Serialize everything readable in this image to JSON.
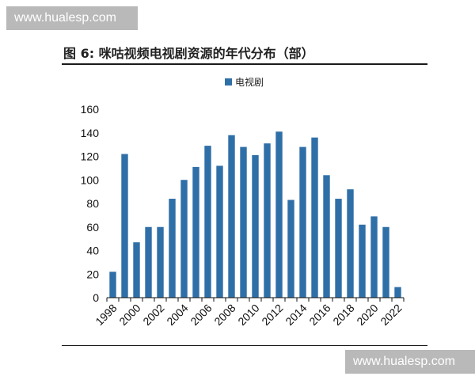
{
  "watermarks": {
    "top": "www.hualesp.com",
    "bottom": "www.hualesp.com"
  },
  "figure_title": "图 6: 咪咕视频电视剧资源的年代分布（部）",
  "colors": {
    "bar": "#2F6FA8",
    "axis": "#111111"
  },
  "chart_data": {
    "type": "bar",
    "title": "图 6: 咪咕视频电视剧资源的年代分布（部）",
    "xlabel": "",
    "ylabel": "",
    "ylim": [
      0,
      160
    ],
    "yticks": [
      0,
      20,
      40,
      60,
      80,
      100,
      120,
      140,
      160
    ],
    "grid": false,
    "legend_position": "top-center",
    "categories": [
      "1998",
      "1999",
      "2000",
      "2001",
      "2002",
      "2003",
      "2004",
      "2005",
      "2006",
      "2007",
      "2008",
      "2009",
      "2010",
      "2011",
      "2012",
      "2013",
      "2014",
      "2015",
      "2016",
      "2017",
      "2018",
      "2019",
      "2020",
      "2021",
      "2022"
    ],
    "tick_labels": [
      "1998",
      "2000",
      "2002",
      "2004",
      "2006",
      "2008",
      "2010",
      "2012",
      "2014",
      "2016",
      "2018",
      "2020",
      "2022"
    ],
    "series": [
      {
        "name": "电视剧",
        "values": [
          22,
          122,
          47,
          60,
          60,
          84,
          100,
          111,
          129,
          112,
          138,
          128,
          121,
          131,
          141,
          83,
          128,
          136,
          104,
          84,
          92,
          62,
          69,
          60,
          9
        ]
      }
    ]
  }
}
